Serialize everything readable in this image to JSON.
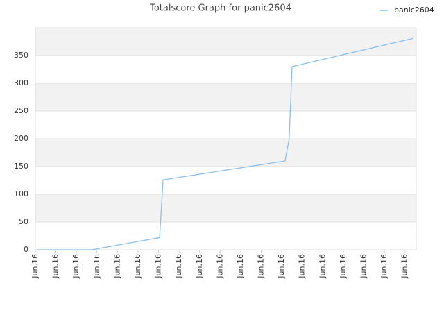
{
  "chart_data": {
    "type": "line",
    "title": "Totalscore Graph for panic2604",
    "x": [
      0.07,
      2.74,
      6.05,
      6.22,
      12.16,
      12.36,
      12.5,
      18.41
    ],
    "series": [
      {
        "name": "panic2604",
        "color": "#8cc0ea",
        "values": [
          0,
          0,
          22,
          126,
          160,
          200,
          330,
          381
        ]
      }
    ],
    "xlim": [
      0,
      18.55
    ],
    "xticks": [
      {
        "value": 0,
        "label": "Jun.16"
      },
      {
        "value": 1,
        "label": "Jun.16"
      },
      {
        "value": 2,
        "label": "Jun.16"
      },
      {
        "value": 3,
        "label": "Jun.16"
      },
      {
        "value": 4,
        "label": "Jun.16"
      },
      {
        "value": 5,
        "label": "Jun.16"
      },
      {
        "value": 6,
        "label": "Jun.16"
      },
      {
        "value": 7,
        "label": "Jun.16"
      },
      {
        "value": 8,
        "label": "Jun.16"
      },
      {
        "value": 9,
        "label": "Jun.16"
      },
      {
        "value": 10,
        "label": "Jun.16"
      },
      {
        "value": 11,
        "label": "Jun.16"
      },
      {
        "value": 12,
        "label": "Jun.16"
      },
      {
        "value": 13,
        "label": "Jun.16"
      },
      {
        "value": 14,
        "label": "Jun.16"
      },
      {
        "value": 15,
        "label": "Jun.16"
      },
      {
        "value": 16,
        "label": "Jun.16"
      },
      {
        "value": 17,
        "label": "Jun.16"
      },
      {
        "value": 18,
        "label": "Jun.16"
      }
    ],
    "ylim": [
      0,
      400
    ],
    "yticks": [
      0,
      50,
      100,
      150,
      200,
      250,
      300,
      350
    ],
    "grid": true,
    "legend": "top-right"
  }
}
